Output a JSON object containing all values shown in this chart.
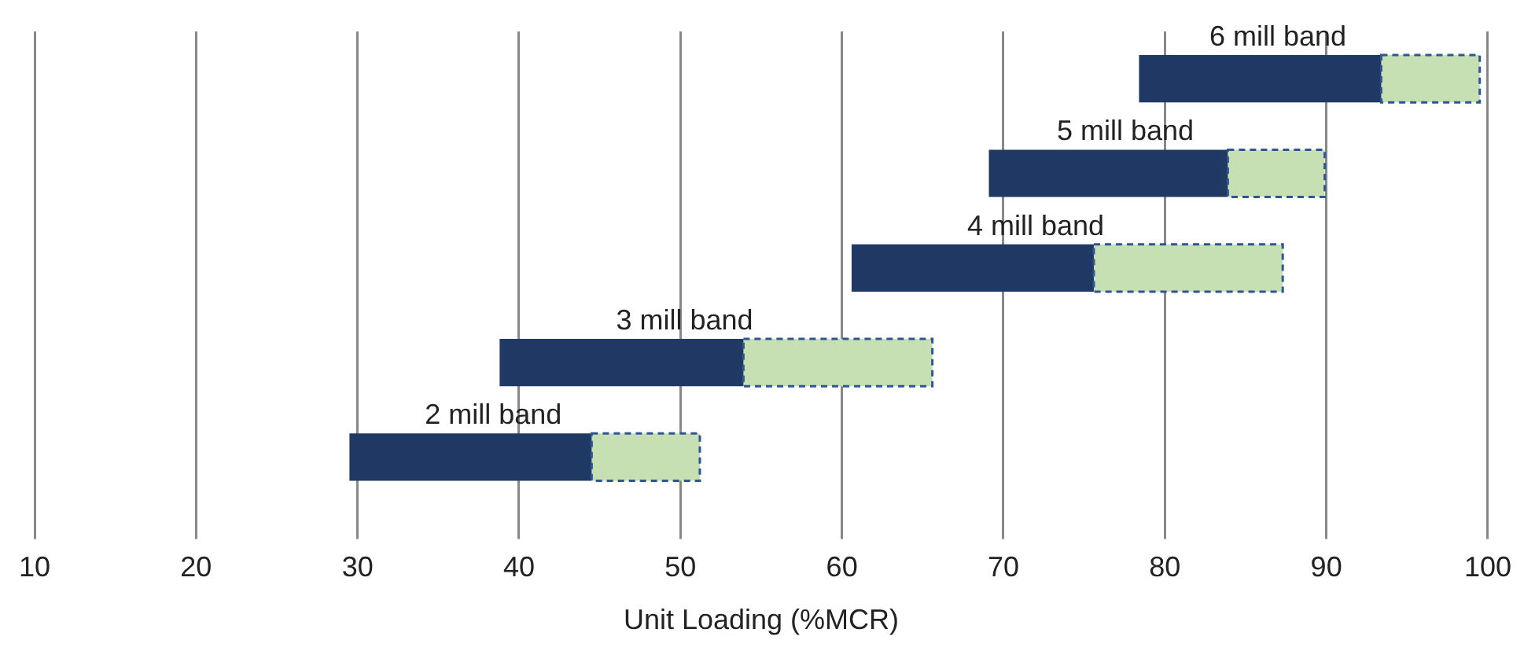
{
  "chart_data": {
    "type": "bar",
    "orientation": "horizontal",
    "xlabel": "Unit Loading (%MCR)",
    "categories": [
      "6 mill band",
      "5 mill band",
      "4 mill band",
      "3 mill band",
      "2 mill band"
    ],
    "series": [
      {
        "color": "#1f3864",
        "base": [
          78.4,
          69.1,
          60.6,
          38.8,
          29.5
        ],
        "values": [
          15,
          14.8,
          15,
          15.1,
          15
        ]
      },
      {
        "color": "#c6e0b4",
        "line_style": "dashed",
        "base": [
          93.4,
          83.9,
          75.6,
          53.9,
          44.5
        ],
        "values": [
          6.1,
          6,
          11.7,
          11.7,
          6.7
        ]
      }
    ],
    "xlim": [
      10,
      100
    ],
    "xticks": [
      10,
      20,
      30,
      40,
      50,
      60,
      70,
      80,
      90,
      100
    ],
    "grid": "x",
    "legend": false
  }
}
